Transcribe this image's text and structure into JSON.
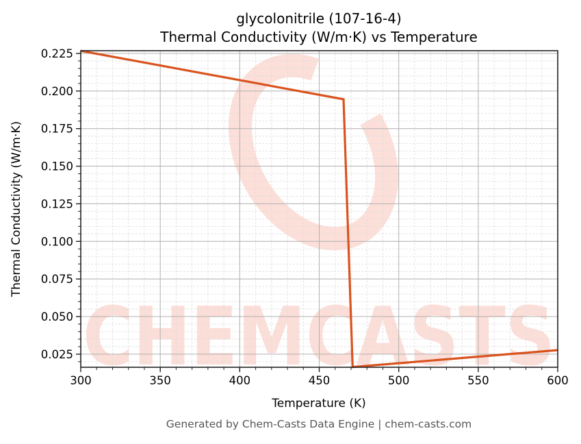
{
  "title": {
    "line1": "glycolonitrile (107-16-4)",
    "line2": "Thermal Conductivity (W/m·K) vs Temperature"
  },
  "footer": "Generated by Chem-Casts Data Engine | chem-casts.com",
  "watermark": {
    "text": "CHEMCASTS",
    "color": "#fcd9d2"
  },
  "colors": {
    "line": "#d9531e",
    "major_grid": "#b0b0b0",
    "minor_grid": "#dddddd",
    "axis": "#222222",
    "text": "#000000",
    "footer_text": "#555555"
  },
  "chart_data": {
    "type": "line",
    "title": "glycolonitrile (107-16-4)\nThermal Conductivity (W/m·K) vs Temperature",
    "xlabel": "Temperature (K)",
    "ylabel": "Thermal Conductivity (W/m·K)",
    "xlim": [
      300,
      600
    ],
    "ylim": [
      0.0163,
      0.2268
    ],
    "xticks": [
      300,
      350,
      400,
      450,
      500,
      550,
      600
    ],
    "xtick_labels": [
      "300",
      "350",
      "400",
      "450",
      "500",
      "550",
      "600"
    ],
    "yticks": [
      0.025,
      0.05,
      0.075,
      0.1,
      0.125,
      0.15,
      0.175,
      0.2,
      0.225
    ],
    "ytick_labels": [
      "0.025",
      "0.050",
      "0.075",
      "0.100",
      "0.125",
      "0.150",
      "0.175",
      "0.200",
      "0.225"
    ],
    "x_minor_step": 10,
    "y_minor_step": 0.005,
    "grid": true,
    "legend": null,
    "series": [
      {
        "name": "Thermal Conductivity",
        "x": [
          300,
          465.3,
          471,
          600
        ],
        "y": [
          0.2267,
          0.1945,
          0.0165,
          0.0277
        ]
      }
    ]
  }
}
